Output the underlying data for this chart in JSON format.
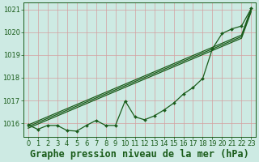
{
  "title": "Graphe pression niveau de la mer (hPa)",
  "background_color": "#cdeae3",
  "grid_color": "#d4a0a0",
  "line_color": "#1a5c1a",
  "marker_color": "#1a5c1a",
  "xlim": [
    -0.5,
    23.5
  ],
  "ylim": [
    1015.4,
    1021.3
  ],
  "xticks": [
    0,
    1,
    2,
    3,
    4,
    5,
    6,
    7,
    8,
    9,
    10,
    11,
    12,
    13,
    14,
    15,
    16,
    17,
    18,
    19,
    20,
    21,
    22,
    23
  ],
  "yticks": [
    1016,
    1017,
    1018,
    1019,
    1020,
    1021
  ],
  "series": {
    "straight1": [
      1015.92,
      1016.1,
      1016.28,
      1016.46,
      1016.64,
      1016.82,
      1017.0,
      1017.18,
      1017.36,
      1017.54,
      1017.72,
      1017.9,
      1018.08,
      1018.26,
      1018.44,
      1018.62,
      1018.8,
      1018.98,
      1019.16,
      1019.34,
      1019.52,
      1019.7,
      1019.88,
      1021.05
    ],
    "straight2": [
      1015.85,
      1016.03,
      1016.21,
      1016.39,
      1016.57,
      1016.75,
      1016.93,
      1017.11,
      1017.29,
      1017.47,
      1017.65,
      1017.83,
      1018.01,
      1018.19,
      1018.37,
      1018.55,
      1018.73,
      1018.91,
      1019.09,
      1019.27,
      1019.45,
      1019.63,
      1019.81,
      1020.98
    ],
    "straight3": [
      1015.78,
      1015.96,
      1016.14,
      1016.32,
      1016.5,
      1016.68,
      1016.86,
      1017.04,
      1017.22,
      1017.4,
      1017.58,
      1017.76,
      1017.94,
      1018.12,
      1018.3,
      1018.48,
      1018.66,
      1018.84,
      1019.02,
      1019.2,
      1019.38,
      1019.56,
      1019.74,
      1020.91
    ],
    "zigzag": [
      1015.92,
      1015.73,
      1015.9,
      1015.9,
      1015.68,
      1015.65,
      1015.9,
      1016.12,
      1015.9,
      1015.9,
      1016.98,
      1016.28,
      1016.15,
      1016.32,
      1016.58,
      1016.88,
      1017.28,
      1017.57,
      1017.97,
      1019.28,
      1019.95,
      1020.15,
      1020.28,
      1021.05
    ]
  },
  "title_fontsize": 8.5,
  "tick_fontsize": 6.0
}
